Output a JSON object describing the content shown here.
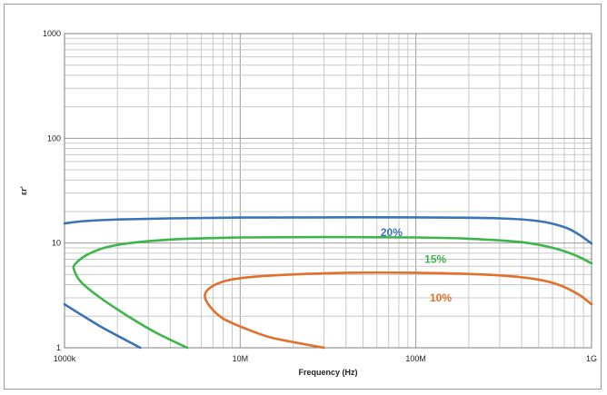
{
  "chart_data": {
    "type": "line",
    "title": "",
    "xlabel": "Frequency (Hz)",
    "ylabel": "εr'",
    "x_scale": "log",
    "y_scale": "log",
    "xlim": [
      1000000,
      1000000000
    ],
    "ylim": [
      1,
      1000
    ],
    "x_tick_labels": [
      "1000k",
      "10M",
      "100M",
      "1G"
    ],
    "x_ticks": [
      1000000,
      10000000,
      100000000,
      1000000000
    ],
    "y_tick_labels": [
      "1",
      "10",
      "100",
      "1000"
    ],
    "y_ticks": [
      1,
      10,
      100,
      1000
    ],
    "grid": true,
    "legend": "none",
    "series": [
      {
        "name": "20%",
        "color": "#3b73b9",
        "label_at": [
          63000000,
          12.6
        ],
        "segments": [
          [
            [
              1000000,
              15.4
            ],
            [
              1300000,
              16.2
            ],
            [
              2000000,
              16.8
            ],
            [
              4000000,
              17.2
            ],
            [
              10000000,
              17.5
            ],
            [
              30000000,
              17.6
            ],
            [
              100000000,
              17.6
            ],
            [
              300000000,
              17.2
            ],
            [
              500000000,
              16.2
            ],
            [
              700000000,
              14.2
            ],
            [
              850000000,
              12.0
            ],
            [
              1000000000,
              9.9
            ]
          ],
          [
            [
              1000000,
              2.6
            ],
            [
              1200000,
              2.15
            ],
            [
              1600000,
              1.6
            ],
            [
              2100000,
              1.25
            ],
            [
              2700000,
              1.0
            ]
          ]
        ]
      },
      {
        "name": "15%",
        "color": "#3db54a",
        "label_at": [
          112000000,
          7.0
        ],
        "segments": [
          [
            [
              1000000000,
              6.4
            ],
            [
              800000000,
              7.7
            ],
            [
              600000000,
              9.0
            ],
            [
              400000000,
              10.2
            ],
            [
              200000000,
              11.0
            ],
            [
              100000000,
              11.3
            ],
            [
              30000000,
              11.4
            ],
            [
              10000000,
              11.3
            ],
            [
              4000000,
              10.8
            ],
            [
              2000000,
              9.6
            ],
            [
              1400000,
              8.0
            ],
            [
              1150000,
              6.3
            ],
            [
              1140000,
              5.4
            ],
            [
              1250000,
              4.2
            ],
            [
              1600000,
              3.0
            ],
            [
              2300000,
              2.0
            ],
            [
              3300000,
              1.4
            ],
            [
              5000000,
              1.0
            ]
          ]
        ]
      },
      {
        "name": "10%",
        "color": "#e2702b",
        "label_at": [
          120000000,
          3.0
        ],
        "segments": [
          [
            [
              1000000000,
              2.6
            ],
            [
              850000000,
              3.2
            ],
            [
              650000000,
              4.0
            ],
            [
              450000000,
              4.6
            ],
            [
              250000000,
              5.0
            ],
            [
              100000000,
              5.2
            ],
            [
              40000000,
              5.2
            ],
            [
              15000000,
              4.9
            ],
            [
              9000000,
              4.5
            ],
            [
              7000000,
              3.9
            ],
            [
              6300000,
              3.2
            ],
            [
              6700000,
              2.5
            ],
            [
              8000000,
              1.9
            ],
            [
              11000000,
              1.5
            ],
            [
              15000000,
              1.25
            ],
            [
              22000000,
              1.1
            ],
            [
              30000000,
              1.0
            ]
          ]
        ]
      }
    ]
  }
}
